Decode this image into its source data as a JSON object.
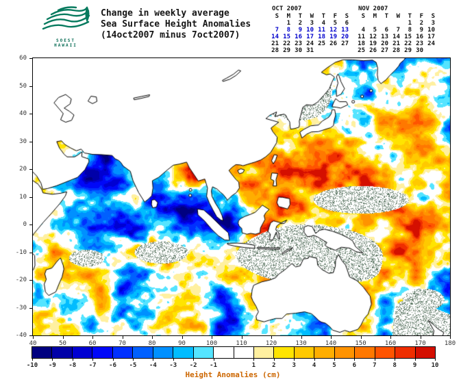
{
  "header": {
    "logo": {
      "caption_line1": "SOEST",
      "caption_line2": "HAWAII"
    },
    "title_line1": "Change in weekly average",
    "title_line2": "Sea Surface Height Anomalies",
    "title_line3": "(14oct2007 minus 7oct2007)"
  },
  "calendars": [
    {
      "title": "OCT 2007",
      "days_header": [
        "S",
        "M",
        "T",
        "W",
        "T",
        "F",
        "S"
      ],
      "weeks": [
        {
          "days": [
            "",
            "1",
            "2",
            "3",
            "4",
            "5",
            "6"
          ],
          "highlighted": false
        },
        {
          "days": [
            "7",
            "8",
            "9",
            "10",
            "11",
            "12",
            "13"
          ],
          "highlighted": true
        },
        {
          "days": [
            "14",
            "15",
            "16",
            "17",
            "18",
            "19",
            "20"
          ],
          "highlighted": true
        },
        {
          "days": [
            "21",
            "22",
            "23",
            "24",
            "25",
            "26",
            "27"
          ],
          "highlighted": false
        },
        {
          "days": [
            "28",
            "29",
            "30",
            "31",
            "",
            "",
            ""
          ],
          "highlighted": false
        }
      ]
    },
    {
      "title": "NOV 2007",
      "days_header": [
        "S",
        "M",
        "T",
        "W",
        "T",
        "F",
        "S"
      ],
      "weeks": [
        {
          "days": [
            "",
            "",
            "",
            "",
            "1",
            "2",
            "3"
          ],
          "highlighted": false
        },
        {
          "days": [
            "4",
            "5",
            "6",
            "7",
            "8",
            "9",
            "10"
          ],
          "highlighted": false
        },
        {
          "days": [
            "11",
            "12",
            "13",
            "14",
            "15",
            "16",
            "17"
          ],
          "highlighted": false
        },
        {
          "days": [
            "18",
            "19",
            "20",
            "21",
            "22",
            "23",
            "24"
          ],
          "highlighted": false
        },
        {
          "days": [
            "25",
            "26",
            "27",
            "28",
            "29",
            "30",
            ""
          ],
          "highlighted": false
        }
      ]
    }
  ],
  "chart_data": {
    "type": "heatmap",
    "title": "Change in weekly average Sea Surface Height Anomalies (14oct2007 minus 7oct2007)",
    "region": "Indian Ocean and western Pacific, land shown white with coastlines",
    "x_axis": {
      "min": 40,
      "max": 180,
      "ticks": [
        40,
        50,
        60,
        70,
        80,
        90,
        100,
        110,
        120,
        130,
        140,
        150,
        160,
        170,
        180
      ]
    },
    "y_axis": {
      "min": -40,
      "max": 60,
      "ticks": [
        -40,
        -30,
        -20,
        -10,
        0,
        10,
        20,
        30,
        40,
        50,
        60
      ]
    },
    "field": "weekly sea surface height anomaly difference in cm; mesoscale eddy field spanning -10 to +10 cm over ocean areas (rendered procedurally); stippled speckle patches mark near-zero/masked regions",
    "colorbar": {
      "title": "Height Anomalies (cm)",
      "title_color": "#cc6600",
      "min": -10,
      "max": 10,
      "tick_labels": [
        -10,
        -9,
        -8,
        -7,
        -6,
        -5,
        -4,
        -3,
        -2,
        -1,
        1,
        2,
        3,
        4,
        5,
        6,
        7,
        8,
        9,
        10
      ],
      "segment_colors": [
        "#000080",
        "#0000a8",
        "#0000d2",
        "#0008f8",
        "#0030ff",
        "#0060ff",
        "#0090ff",
        "#00bcff",
        "#55e4ff",
        "#ffffff",
        "#ffffff",
        "#fff0a0",
        "#ffe400",
        "#ffc900",
        "#ffae00",
        "#ff9300",
        "#ff7800",
        "#ff5400",
        "#ef2e00",
        "#d40f00"
      ]
    }
  },
  "accent_colors": {
    "highlight_week": "#0000cc",
    "logo_green": "#067a5e"
  }
}
